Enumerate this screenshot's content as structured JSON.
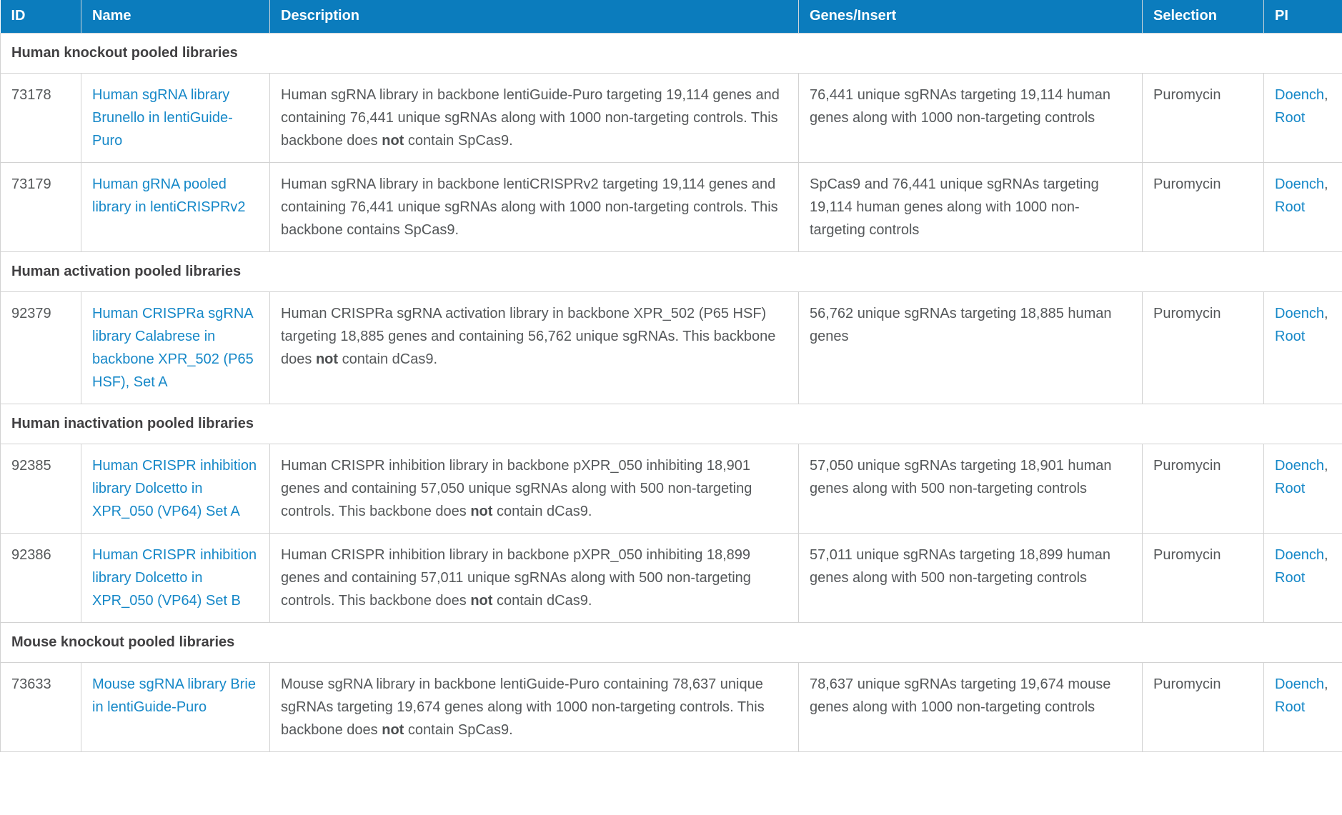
{
  "colors": {
    "header_background": "#0b7cbd",
    "header_text": "#ffffff",
    "link": "#1688c8",
    "body_text": "#55585a",
    "section_text": "#414042",
    "border": "#d2d2d2"
  },
  "table": {
    "columns": [
      "ID",
      "Name",
      "Description",
      "Genes/Insert",
      "Selection",
      "PI"
    ],
    "sections": [
      {
        "title": "Human knockout pooled libraries",
        "rows": [
          {
            "id": "73178",
            "name": "Human sgRNA library Brunello in lentiGuide-Puro",
            "description": {
              "pre": "Human sgRNA library in backbone lentiGuide-Puro targeting 19,114 genes and containing 76,441 unique sgRNAs along with 1000 non-targeting controls. This backbone does ",
              "bold": "not",
              "post": " contain SpCas9."
            },
            "genes_insert": "76,441 unique sgRNAs targeting 19,114 human genes along with 1000 non-targeting controls",
            "selection": "Puromycin",
            "pi": {
              "first": "Doench",
              "separator": ", ",
              "second": "Root"
            }
          },
          {
            "id": "73179",
            "name": "Human gRNA pooled library in lentiCRISPRv2",
            "description": {
              "pre": "Human sgRNA library in backbone lentiCRISPRv2 targeting 19,114 genes and containing 76,441 unique sgRNAs along with 1000 non-targeting controls. This backbone contains SpCas9.",
              "bold": "",
              "post": ""
            },
            "genes_insert": "SpCas9 and 76,441 unique sgRNAs targeting 19,114 human genes along with 1000 non-targeting controls",
            "selection": "Puromycin",
            "pi": {
              "first": "Doench",
              "separator": ", ",
              "second": "Root"
            }
          }
        ]
      },
      {
        "title": "Human activation pooled libraries",
        "rows": [
          {
            "id": "92379",
            "name": "Human CRISPRa sgRNA library Calabrese in backbone XPR_502 (P65 HSF), Set A",
            "description": {
              "pre": "Human CRISPRa sgRNA activation library in backbone XPR_502 (P65 HSF) targeting 18,885 genes and containing 56,762 unique sgRNAs. This backbone does ",
              "bold": "not",
              "post": " contain dCas9."
            },
            "genes_insert": "56,762 unique sgRNAs targeting 18,885 human genes",
            "selection": "Puromycin",
            "pi": {
              "first": "Doench",
              "separator": ", ",
              "second": "Root"
            }
          }
        ]
      },
      {
        "title": "Human inactivation pooled libraries",
        "rows": [
          {
            "id": "92385",
            "name": "Human CRISPR inhibition library Dolcetto in XPR_050 (VP64) Set A",
            "description": {
              "pre": "Human CRISPR inhibition library in backbone pXPR_050 inhibiting 18,901 genes and containing 57,050 unique sgRNAs along with 500 non-targeting controls. This backbone does ",
              "bold": "not",
              "post": " contain dCas9."
            },
            "genes_insert": "57,050 unique sgRNAs targeting 18,901 human genes along with 500 non-targeting controls",
            "selection": "Puromycin",
            "pi": {
              "first": "Doench",
              "separator": ", ",
              "second": "Root"
            }
          },
          {
            "id": "92386",
            "name": "Human CRISPR inhibition library Dolcetto in XPR_050 (VP64) Set B",
            "description": {
              "pre": "Human CRISPR inhibition library in backbone pXPR_050 inhibiting 18,899 genes and containing 57,011 unique sgRNAs along with 500 non-targeting controls. This backbone does ",
              "bold": "not",
              "post": " contain dCas9."
            },
            "genes_insert": "57,011 unique sgRNAs targeting 18,899 human genes along with 500 non-targeting controls",
            "selection": "Puromycin",
            "pi": {
              "first": "Doench",
              "separator": ", ",
              "second": "Root"
            }
          }
        ]
      },
      {
        "title": "Mouse knockout pooled libraries",
        "rows": [
          {
            "id": "73633",
            "name": "Mouse sgRNA library Brie in lentiGuide-Puro",
            "description": {
              "pre": "Mouse sgRNA library in backbone lentiGuide-Puro containing 78,637 unique sgRNAs targeting 19,674 genes along with 1000 non-targeting controls. This backbone does ",
              "bold": "not",
              "post": " contain SpCas9."
            },
            "genes_insert": "78,637 unique sgRNAs targeting 19,674 mouse genes along with 1000 non-targeting controls",
            "selection": "Puromycin",
            "pi": {
              "first": "Doench",
              "separator": ", ",
              "second": "Root"
            }
          }
        ]
      }
    ]
  }
}
